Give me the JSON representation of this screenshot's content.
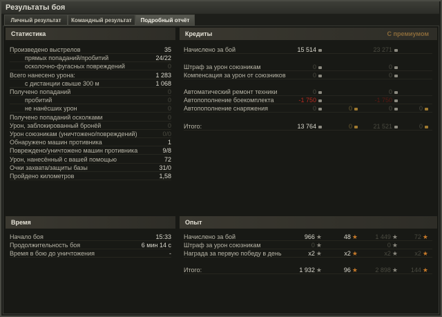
{
  "window": {
    "title": "Результаты боя"
  },
  "tabs": [
    {
      "label": "Личный результат"
    },
    {
      "label": "Командный результат"
    },
    {
      "label": "Подробный отчёт",
      "active": true
    }
  ],
  "stats": {
    "title": "Статистика",
    "rows": [
      {
        "label": "Произведено выстрелов",
        "value": "35"
      },
      {
        "label": "прямых попаданий/пробитий",
        "value": "24/22",
        "indent": true
      },
      {
        "label": "осколочно-фугасных повреждений",
        "value": "0",
        "indent": true,
        "dim": true
      },
      {
        "label": "Всего нанесено урона:",
        "value": "1 283"
      },
      {
        "label": "с дистанции свыше 300 м",
        "value": "1 068",
        "indent": true
      },
      {
        "label": "Получено попаданий",
        "value": "0",
        "dim": true
      },
      {
        "label": "пробитий",
        "value": "0",
        "indent": true,
        "dim": true
      },
      {
        "label": "не нанёсших урон",
        "value": "0",
        "indent": true,
        "dim": true
      },
      {
        "label": "Получено попаданий осколками",
        "value": "0",
        "dim": true
      },
      {
        "label": "Урон, заблокированный бронёй",
        "value": "0",
        "dim": true
      },
      {
        "label": "Урон союзникам (уничтожено/повреждений)",
        "value": "0/0",
        "dim": true
      },
      {
        "label": "Обнаружено машин противника",
        "value": "1"
      },
      {
        "label": "Повреждено/уничтожено машин противника",
        "value": "9/8"
      },
      {
        "label": "Урон, нанесённый с вашей помощью",
        "value": "72"
      },
      {
        "label": "Очки захвата/защиты базы",
        "value": "31/0"
      },
      {
        "label": "Пройдено километров",
        "value": "1,58"
      }
    ]
  },
  "credits": {
    "title": "Кредиты",
    "premium_label": "С премиумом",
    "rows": [
      {
        "label": "Начислено за бой",
        "values": [
          "15 514",
          "",
          "23 271",
          ""
        ]
      },
      {
        "label": "Штраф за урон союзникам",
        "values": [
          "0",
          "",
          "0",
          ""
        ]
      },
      {
        "label": "Компенсация за урон от союзников",
        "values": [
          "0",
          "",
          "0",
          ""
        ]
      },
      {
        "label": "Автоматический ремонт техники",
        "values": [
          "0",
          "",
          "0",
          ""
        ]
      },
      {
        "label": "Автопополнение боекомплекта",
        "values": [
          "-1 750",
          "",
          "-1 750",
          ""
        ]
      },
      {
        "label": "Автопополнение снаряжения",
        "values": [
          "0",
          "0",
          "0",
          "0"
        ]
      },
      {
        "label": "Итого:",
        "values": [
          "13 764",
          "0",
          "21 521",
          "0"
        ]
      }
    ]
  },
  "time": {
    "title": "Время",
    "rows": [
      {
        "label": "Начало боя",
        "value": "15:33"
      },
      {
        "label": "Продолжительность боя",
        "value": "6 мин 14 с"
      },
      {
        "label": "Время в бою до уничтожения",
        "value": "-"
      }
    ]
  },
  "experience": {
    "title": "Опыт",
    "rows": [
      {
        "label": "Начислено за бой",
        "values": [
          "966",
          "48",
          "1 449",
          "72"
        ]
      },
      {
        "label": "Штраф за урон союзникам",
        "values": [
          "0",
          "",
          "0",
          ""
        ]
      },
      {
        "label": "Награда за первую победу в день",
        "values": [
          "x2",
          "x2",
          "x2",
          "x2"
        ]
      },
      {
        "label": "Итого:",
        "values": [
          "1 932",
          "96",
          "2 898",
          "144"
        ]
      }
    ]
  },
  "colors": {
    "negative": "#b82a20",
    "premium": "#8a6a3a",
    "free_xp_gold": "#c87a2a"
  }
}
